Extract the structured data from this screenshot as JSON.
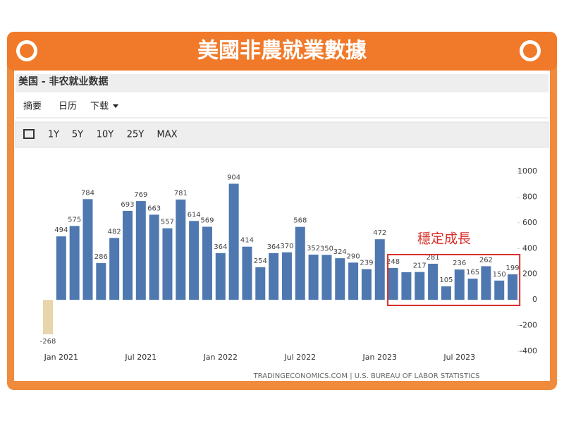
{
  "banner_title": "美國非農就業數據",
  "panel_title": "美国 - 非农就业数据",
  "tabs": [
    "摘要",
    "日历",
    "下载"
  ],
  "toolbar": [
    "1Y",
    "5Y",
    "10Y",
    "25Y",
    "MAX"
  ],
  "chart_data": {
    "type": "bar",
    "categories": [
      null,
      "Jan 2021",
      null,
      null,
      null,
      null,
      null,
      "Jul 2021",
      null,
      null,
      null,
      null,
      null,
      "Jan 2022",
      null,
      null,
      null,
      null,
      null,
      "Jul 2022",
      null,
      null,
      null,
      null,
      null,
      "Jan 2023",
      null,
      null,
      null,
      null,
      null,
      "Jul 2023",
      null,
      null,
      null,
      null
    ],
    "values": [
      -268,
      494,
      575,
      784,
      286,
      482,
      693,
      769,
      663,
      557,
      781,
      614,
      569,
      364,
      904,
      414,
      254,
      364,
      370,
      568,
      352,
      350,
      324,
      290,
      239,
      472,
      248,
      215,
      217,
      281,
      105,
      236,
      165,
      262,
      150,
      199
    ],
    "value_labels": [
      "-268",
      "494",
      "575",
      "784",
      "286",
      "482",
      "693",
      "769",
      "663",
      "557",
      "781",
      "614",
      "569",
      "364",
      "904",
      "414",
      "254",
      "364",
      "370",
      "568",
      "352",
      "350",
      "324",
      "290",
      "239",
      "472",
      "248",
      null,
      "217",
      "281",
      "105",
      "236",
      "165",
      "262",
      "150",
      "199"
    ],
    "color": "#4f78b0",
    "first_color": "#e9d5ab",
    "ylim": [
      -400,
      1000
    ],
    "yticks": [
      -400,
      -200,
      0,
      200,
      400,
      600,
      800,
      1000
    ],
    "annotation": "穩定成長",
    "annotation_color": "#d9302b",
    "source": "TRADINGECONOMICS.COM | U.S. BUREAU OF LABOR STATISTICS"
  }
}
